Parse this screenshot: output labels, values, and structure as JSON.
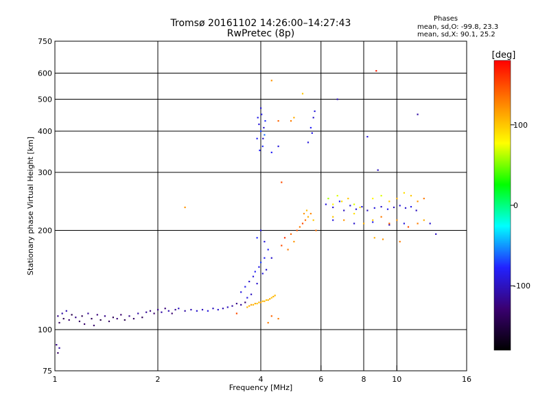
{
  "title": "Tromsø 20161102 14:26:00–14:27:43",
  "subtitle": "RwPretec (8p)",
  "phases": {
    "heading": "Phases",
    "line_o": "mean, sd,O: -99.8, 23.3",
    "line_x": "mean, sd,X:  90.1, 25.2"
  },
  "chart_data": {
    "type": "scatter",
    "xlabel": "Frequency [MHz]",
    "ylabel": "Stationary phase Virtual Height [km]",
    "xscale": "log",
    "yscale": "log",
    "xlim": [
      1,
      16
    ],
    "ylim": [
      75,
      750
    ],
    "xticks": [
      1,
      2,
      4,
      6,
      8,
      10,
      16
    ],
    "yticks": [
      75,
      100,
      200,
      300,
      400,
      500,
      600,
      750
    ],
    "grid": true,
    "colorbar": {
      "label": "[deg]",
      "range": [
        -180,
        180
      ],
      "ticks": [
        100,
        0,
        -100
      ],
      "colors": [
        "#000000",
        "#3a0070",
        "#2222ff",
        "#00ffff",
        "#00ff00",
        "#ffff00",
        "#ff8000",
        "#ff0000"
      ]
    },
    "series": [
      {
        "points": [
          [
            1.02,
            110,
            -120
          ],
          [
            1.03,
            105,
            -135
          ],
          [
            1.05,
            112,
            -110
          ],
          [
            1.06,
            108,
            -140
          ],
          [
            1.08,
            114,
            -105
          ],
          [
            1.1,
            107,
            -130
          ],
          [
            1.12,
            111,
            -145
          ],
          [
            1.15,
            109,
            -120
          ],
          [
            1.18,
            106,
            -135
          ],
          [
            1.2,
            110,
            -140
          ],
          [
            1.22,
            104,
            -130
          ],
          [
            1.25,
            112,
            -115
          ],
          [
            1.28,
            108,
            -140
          ],
          [
            1.3,
            103,
            -130
          ],
          [
            1.33,
            111,
            -125
          ],
          [
            1.36,
            107,
            -145
          ],
          [
            1.4,
            110,
            -120
          ],
          [
            1.44,
            106,
            -135
          ],
          [
            1.48,
            109,
            -140
          ],
          [
            1.52,
            108,
            -125
          ],
          [
            1.56,
            111,
            -130
          ],
          [
            1.6,
            107,
            -145
          ],
          [
            1.65,
            110,
            -120
          ],
          [
            1.7,
            108,
            -135
          ],
          [
            1.75,
            112,
            -110
          ],
          [
            1.8,
            109,
            -140
          ],
          [
            1.85,
            113,
            -115
          ],
          [
            1.9,
            114,
            -125
          ],
          [
            1.95,
            112,
            -130
          ],
          [
            2.0,
            115,
            -120
          ],
          [
            2.05,
            113,
            -110
          ],
          [
            2.1,
            116,
            -125
          ],
          [
            2.15,
            114,
            -105
          ],
          [
            2.2,
            112,
            -130
          ],
          [
            2.25,
            115,
            -115
          ],
          [
            2.3,
            116,
            -100
          ],
          [
            2.4,
            114,
            -110
          ],
          [
            2.5,
            115,
            -105
          ],
          [
            2.6,
            114,
            -95
          ],
          [
            2.7,
            115,
            -100
          ],
          [
            2.8,
            114,
            -90
          ],
          [
            2.9,
            116,
            -100
          ],
          [
            3.0,
            115,
            -95
          ],
          [
            3.1,
            116,
            -105
          ],
          [
            3.2,
            117,
            -100
          ],
          [
            3.3,
            118,
            -110
          ],
          [
            3.4,
            120,
            -120
          ],
          [
            3.5,
            119,
            -115
          ],
          [
            3.6,
            121,
            -130
          ],
          [
            1.01,
            90,
            -120
          ],
          [
            1.02,
            85,
            -135
          ],
          [
            1.03,
            88,
            -110
          ],
          [
            3.5,
            130,
            -90
          ],
          [
            3.6,
            135,
            -85
          ],
          [
            3.7,
            140,
            -95
          ],
          [
            3.75,
            128,
            -100
          ],
          [
            3.8,
            145,
            -90
          ],
          [
            3.85,
            150,
            -80
          ],
          [
            3.9,
            138,
            -95
          ],
          [
            3.95,
            155,
            -85
          ],
          [
            4.0,
            160,
            -70
          ],
          [
            4.05,
            148,
            -90
          ],
          [
            4.1,
            165,
            -80
          ],
          [
            4.15,
            152,
            -95
          ],
          [
            3.65,
            125,
            -88
          ],
          [
            3.9,
            380,
            -80
          ],
          [
            3.95,
            420,
            -90
          ],
          [
            4.0,
            400,
            -70
          ],
          [
            4.02,
            450,
            -85
          ],
          [
            4.05,
            360,
            -75
          ],
          [
            4.08,
            410,
            -95
          ],
          [
            4.1,
            390,
            -60
          ],
          [
            3.92,
            440,
            -85
          ],
          [
            4.0,
            470,
            -90
          ],
          [
            3.97,
            350,
            -80
          ],
          [
            4.12,
            430,
            -75
          ],
          [
            4.06,
            380,
            -100
          ],
          [
            4.3,
            345,
            -80
          ],
          [
            4.5,
            360,
            -90
          ],
          [
            5.5,
            370,
            -90
          ],
          [
            5.6,
            410,
            -80
          ],
          [
            5.7,
            440,
            -95
          ],
          [
            5.65,
            395,
            -85
          ],
          [
            5.75,
            460,
            -90
          ],
          [
            6.7,
            500,
            -100
          ],
          [
            11.5,
            450,
            -110
          ],
          [
            8.2,
            385,
            -90
          ],
          [
            8.8,
            305,
            -100
          ],
          [
            4.0,
            200,
            -85
          ],
          [
            4.1,
            185,
            -90
          ],
          [
            4.2,
            175,
            -80
          ],
          [
            4.3,
            165,
            -95
          ],
          [
            3.9,
            190,
            -75
          ],
          [
            6.2,
            240,
            -90
          ],
          [
            6.5,
            235,
            -95
          ],
          [
            6.8,
            245,
            -85
          ],
          [
            7.0,
            230,
            -100
          ],
          [
            7.3,
            238,
            -90
          ],
          [
            7.6,
            232,
            -95
          ],
          [
            7.9,
            236,
            -85
          ],
          [
            8.2,
            230,
            -100
          ],
          [
            8.6,
            234,
            -90
          ],
          [
            9.0,
            236,
            -95
          ],
          [
            9.4,
            232,
            -85
          ],
          [
            9.8,
            235,
            -100
          ],
          [
            10.2,
            238,
            -90
          ],
          [
            10.6,
            234,
            -95
          ],
          [
            11.0,
            236,
            -85
          ],
          [
            11.4,
            230,
            -100
          ],
          [
            6.5,
            215,
            -90
          ],
          [
            7.5,
            210,
            -95
          ],
          [
            8.5,
            212,
            -85
          ],
          [
            9.5,
            208,
            -100
          ],
          [
            10.5,
            210,
            -90
          ],
          [
            12.5,
            210,
            -95
          ],
          [
            13.0,
            195,
            -100
          ]
        ]
      },
      {
        "points": [
          [
            3.7,
            118,
            110
          ],
          [
            3.75,
            119,
            115
          ],
          [
            3.8,
            119,
            105
          ],
          [
            3.85,
            120,
            112
          ],
          [
            3.9,
            120,
            100
          ],
          [
            3.95,
            121,
            110
          ],
          [
            4.0,
            121,
            115
          ],
          [
            4.05,
            122,
            105
          ],
          [
            4.1,
            122,
            110
          ],
          [
            4.15,
            123,
            100
          ],
          [
            4.2,
            123,
            108
          ],
          [
            4.25,
            124,
            112
          ],
          [
            4.3,
            125,
            100
          ],
          [
            4.35,
            126,
            110
          ],
          [
            4.4,
            127,
            105
          ],
          [
            3.65,
            117,
            108
          ],
          [
            4.3,
            110,
            140
          ],
          [
            4.5,
            108,
            130
          ],
          [
            3.4,
            112,
            150
          ],
          [
            4.6,
            180,
            150
          ],
          [
            4.7,
            190,
            160
          ],
          [
            4.8,
            175,
            130
          ],
          [
            4.9,
            195,
            140
          ],
          [
            5.0,
            185,
            120
          ],
          [
            5.1,
            200,
            145
          ],
          [
            5.2,
            205,
            130
          ],
          [
            5.3,
            210,
            150
          ],
          [
            5.4,
            215,
            135
          ],
          [
            5.5,
            220,
            110
          ],
          [
            5.6,
            225,
            125
          ],
          [
            5.7,
            215,
            100
          ],
          [
            5.8,
            200,
            135
          ],
          [
            5.35,
            225,
            120
          ],
          [
            5.45,
            230,
            105
          ],
          [
            6.3,
            250,
            60
          ],
          [
            6.5,
            240,
            80
          ],
          [
            6.7,
            255,
            70
          ],
          [
            6.9,
            245,
            90
          ],
          [
            7.2,
            250,
            100
          ],
          [
            7.5,
            240,
            70
          ],
          [
            7.8,
            235,
            90
          ],
          [
            8.5,
            250,
            80
          ],
          [
            9.0,
            255,
            70
          ],
          [
            9.5,
            245,
            100
          ],
          [
            10.0,
            250,
            110
          ],
          [
            10.5,
            260,
            90
          ],
          [
            11.0,
            255,
            100
          ],
          [
            11.5,
            245,
            120
          ],
          [
            12.0,
            250,
            130
          ],
          [
            6.5,
            220,
            100
          ],
          [
            7.0,
            215,
            120
          ],
          [
            7.5,
            225,
            90
          ],
          [
            8.0,
            210,
            110
          ],
          [
            8.5,
            215,
            100
          ],
          [
            9.0,
            220,
            130
          ],
          [
            9.5,
            210,
            140
          ],
          [
            10.0,
            215,
            120
          ],
          [
            10.8,
            205,
            150
          ],
          [
            11.5,
            210,
            130
          ],
          [
            12.0,
            215,
            110
          ],
          [
            8.6,
            190,
            110
          ],
          [
            9.1,
            188,
            120
          ],
          [
            10.2,
            185,
            130
          ],
          [
            4.3,
            570,
            120
          ],
          [
            5.3,
            520,
            100
          ],
          [
            8.7,
            610,
            170
          ],
          [
            4.5,
            430,
            140
          ],
          [
            5.0,
            440,
            110
          ],
          [
            4.9,
            430,
            130
          ],
          [
            4.6,
            280,
            150
          ],
          [
            2.4,
            235,
            120
          ],
          [
            4.2,
            105,
            130
          ]
        ]
      }
    ]
  }
}
